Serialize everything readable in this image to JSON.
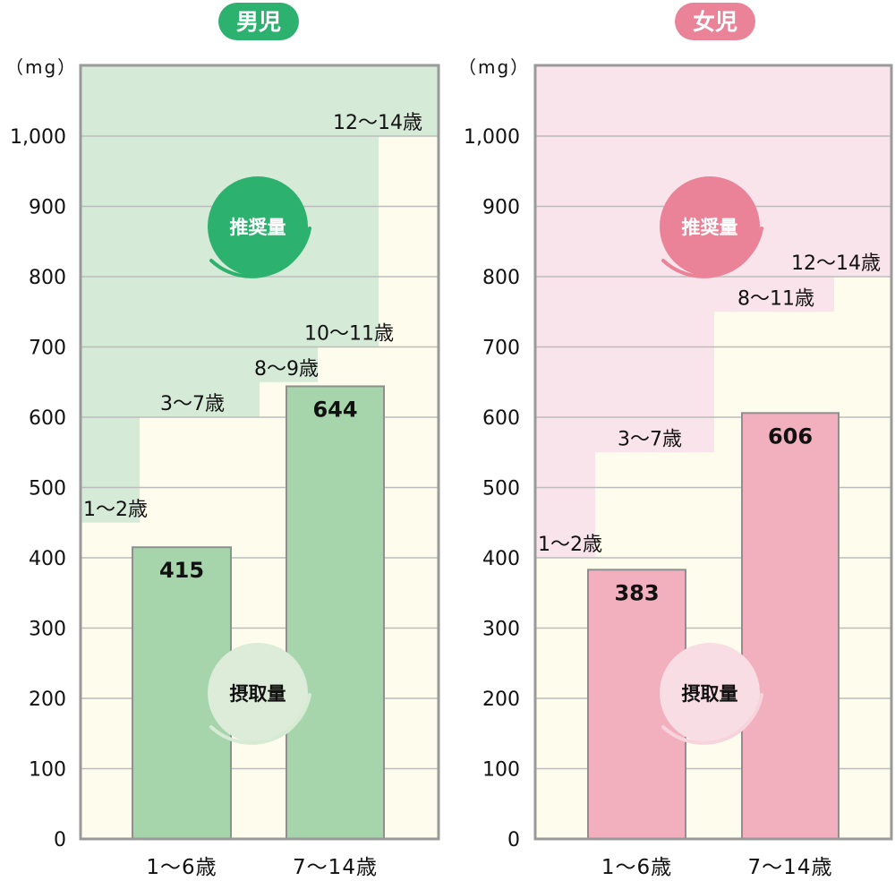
{
  "y_unit": "（mg）",
  "y_ticks": [
    "0",
    "100",
    "200",
    "300",
    "400",
    "500",
    "600",
    "700",
    "800",
    "900",
    "1,000"
  ],
  "recommended_label": "推奨量",
  "intake_label": "摂取量",
  "colors": {
    "boy_accent": "#2db16f",
    "boy_band": "#d6ead8",
    "boy_bar": "#a6d5ab",
    "girl_accent": "#eb8398",
    "girl_band": "#fae4ec",
    "girl_bar": "#f2b0bf",
    "below_fill": "#fefcec",
    "grid": "#bcbcbc",
    "frame": "#9a9a9a"
  },
  "chart_data": [
    {
      "type": "bar",
      "title": "男児",
      "ylim": [
        0,
        1100
      ],
      "categories": [
        "1～6歳",
        "7～14歳"
      ],
      "values": [
        415,
        644
      ],
      "value_labels": [
        "415",
        "644"
      ],
      "recommended_steps": [
        {
          "label": "1～2歳",
          "value": 450
        },
        {
          "label": "3～7歳",
          "value": 600
        },
        {
          "label": "8～9歳",
          "value": 650
        },
        {
          "label": "10～11歳",
          "value": 700
        },
        {
          "label": "12～14歳",
          "value": 1000
        }
      ]
    },
    {
      "type": "bar",
      "title": "女児",
      "ylim": [
        0,
        1100
      ],
      "categories": [
        "1～6歳",
        "7～14歳"
      ],
      "values": [
        383,
        606
      ],
      "value_labels": [
        "383",
        "606"
      ],
      "recommended_steps": [
        {
          "label": "1～2歳",
          "value": 400
        },
        {
          "label": "3～7歳",
          "value": 550
        },
        {
          "label": "8～11歳",
          "value": 750
        },
        {
          "label": "12～14歳",
          "value": 800
        }
      ]
    }
  ]
}
